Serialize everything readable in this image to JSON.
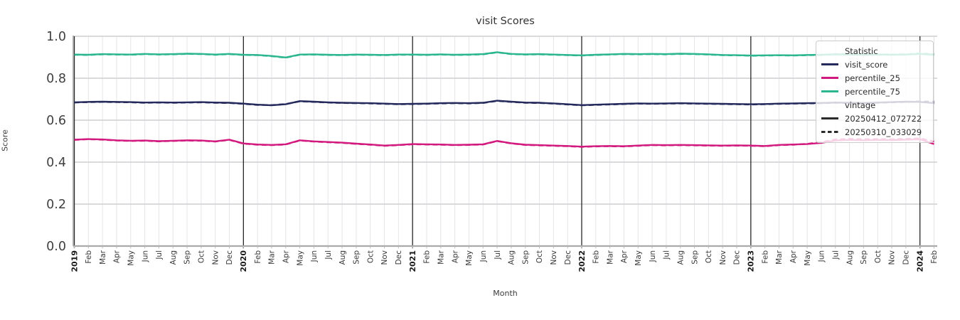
{
  "title": "visit Scores",
  "axes": {
    "xlabel": "Month",
    "ylabel": "Score",
    "yticks": [
      "0.0",
      "0.2",
      "0.4",
      "0.6",
      "0.8",
      "1.0"
    ],
    "ylim": [
      0.0,
      1.0
    ]
  },
  "legend": {
    "title": "Statistic",
    "subtitle": "vintage",
    "statistics": [
      {
        "label": "visit_score",
        "color": "#242a5c"
      },
      {
        "label": "percentile_25",
        "color": "#d2197e"
      },
      {
        "label": "percentile_75",
        "color": "#2bb68f"
      }
    ],
    "vintages": [
      {
        "label": "20250412_072722",
        "dash": "solid",
        "color": "#2b2b2b"
      },
      {
        "label": "20250310_033029",
        "dash": "dashed",
        "color": "#2b2b2b"
      }
    ]
  },
  "colors": {
    "visit_score": "#242a5c",
    "percentile_25": "#d2197e",
    "percentile_75": "#2bb68f",
    "year_gridline": "#262626",
    "month_gridline": "#e5e5e8",
    "major_gridline": "#d4d4d8",
    "spine": "#aaaaaa",
    "tick_text": "#3a3a3a",
    "ytick_text": "#404040"
  },
  "chart_data": {
    "type": "line",
    "title": "visit Scores",
    "xlabel": "Month",
    "ylabel": "Score",
    "ylim": [
      0.0,
      1.0
    ],
    "grid": true,
    "legend_position": "upper right",
    "x": [
      "2019",
      "Feb",
      "Mar",
      "Apr",
      "May",
      "Jun",
      "Jul",
      "Aug",
      "Sep",
      "Oct",
      "Nov",
      "Dec",
      "2020",
      "Feb",
      "Mar",
      "Apr",
      "May",
      "Jun",
      "Jul",
      "Aug",
      "Sep",
      "Oct",
      "Nov",
      "Dec",
      "2021",
      "Feb",
      "Mar",
      "Apr",
      "May",
      "Jun",
      "Jul",
      "Aug",
      "Sep",
      "Oct",
      "Nov",
      "Dec",
      "2022",
      "Feb",
      "Mar",
      "Apr",
      "May",
      "Jun",
      "Jul",
      "Aug",
      "Sep",
      "Oct",
      "Nov",
      "Dec",
      "2023",
      "Feb",
      "Mar",
      "Apr",
      "May",
      "Jun",
      "Jul",
      "Aug",
      "Sep",
      "Oct",
      "Nov",
      "Dec",
      "2024",
      "Feb"
    ],
    "year_indices": [
      0,
      12,
      24,
      36,
      48,
      60
    ],
    "series": [
      {
        "name": "visit_score",
        "vintage": "20250412_072722",
        "color": "#242a5c",
        "dash": "solid",
        "values": [
          0.685,
          0.687,
          0.688,
          0.687,
          0.686,
          0.684,
          0.685,
          0.684,
          0.685,
          0.686,
          0.684,
          0.683,
          0.679,
          0.674,
          0.671,
          0.676,
          0.691,
          0.688,
          0.685,
          0.683,
          0.682,
          0.681,
          0.679,
          0.677,
          0.678,
          0.679,
          0.681,
          0.682,
          0.681,
          0.683,
          0.693,
          0.688,
          0.684,
          0.683,
          0.68,
          0.676,
          0.672,
          0.674,
          0.676,
          0.678,
          0.68,
          0.679,
          0.68,
          0.681,
          0.68,
          0.679,
          0.678,
          0.677,
          0.676,
          0.677,
          0.679,
          0.68,
          0.681,
          0.682,
          0.684,
          0.683,
          0.682,
          0.684,
          0.686,
          0.688,
          0.687,
          0.681
        ]
      },
      {
        "name": "visit_score",
        "vintage": "20250310_033029",
        "color": "#242a5c",
        "dash": "dashed",
        "values": [
          0.684,
          0.686,
          0.687,
          0.686,
          0.685,
          0.683,
          0.684,
          0.683,
          0.684,
          0.685,
          0.683,
          0.682,
          0.678,
          0.673,
          0.672,
          0.677,
          0.69,
          0.687,
          0.684,
          0.682,
          0.681,
          0.68,
          0.678,
          0.676,
          0.677,
          0.678,
          0.68,
          0.681,
          0.68,
          0.682,
          0.692,
          0.687,
          0.683,
          0.682,
          0.679,
          0.675,
          0.671,
          0.673,
          0.675,
          0.677,
          0.679,
          0.678,
          0.679,
          0.68,
          0.679,
          0.678,
          0.677,
          0.676,
          0.675,
          0.676,
          0.678,
          0.679,
          0.68,
          0.681,
          0.683,
          0.682,
          0.681,
          0.683,
          0.685,
          0.687,
          0.689,
          0.688
        ]
      },
      {
        "name": "percentile_25",
        "vintage": "20250412_072722",
        "color": "#d2197e",
        "dash": "solid",
        "values": [
          0.507,
          0.51,
          0.508,
          0.504,
          0.502,
          0.503,
          0.5,
          0.502,
          0.504,
          0.503,
          0.499,
          0.507,
          0.489,
          0.484,
          0.482,
          0.485,
          0.504,
          0.499,
          0.496,
          0.493,
          0.488,
          0.484,
          0.479,
          0.482,
          0.486,
          0.485,
          0.484,
          0.482,
          0.483,
          0.485,
          0.501,
          0.49,
          0.483,
          0.481,
          0.479,
          0.477,
          0.474,
          0.476,
          0.477,
          0.476,
          0.479,
          0.482,
          0.481,
          0.482,
          0.481,
          0.48,
          0.479,
          0.48,
          0.479,
          0.477,
          0.482,
          0.484,
          0.486,
          0.492,
          0.503,
          0.506,
          0.504,
          0.506,
          0.505,
          0.507,
          0.509,
          0.486
        ]
      },
      {
        "name": "percentile_25",
        "vintage": "20250310_033029",
        "color": "#d2197e",
        "dash": "dashed",
        "values": [
          0.506,
          0.509,
          0.507,
          0.503,
          0.501,
          0.502,
          0.499,
          0.501,
          0.503,
          0.502,
          0.498,
          0.506,
          0.488,
          0.483,
          0.481,
          0.484,
          0.503,
          0.498,
          0.495,
          0.492,
          0.487,
          0.483,
          0.478,
          0.481,
          0.485,
          0.484,
          0.483,
          0.481,
          0.482,
          0.484,
          0.5,
          0.489,
          0.482,
          0.48,
          0.478,
          0.476,
          0.473,
          0.475,
          0.476,
          0.475,
          0.478,
          0.481,
          0.48,
          0.481,
          0.48,
          0.479,
          0.478,
          0.479,
          0.478,
          0.476,
          0.481,
          0.483,
          0.487,
          0.495,
          0.508,
          0.511,
          0.509,
          0.51,
          0.509,
          0.511,
          0.513,
          0.498
        ]
      },
      {
        "name": "percentile_75",
        "vintage": "20250412_072722",
        "color": "#2bb68f",
        "dash": "solid",
        "values": [
          0.913,
          0.912,
          0.915,
          0.914,
          0.913,
          0.916,
          0.914,
          0.915,
          0.917,
          0.916,
          0.913,
          0.916,
          0.912,
          0.911,
          0.906,
          0.899,
          0.913,
          0.914,
          0.912,
          0.911,
          0.913,
          0.912,
          0.911,
          0.913,
          0.913,
          0.912,
          0.914,
          0.912,
          0.913,
          0.915,
          0.924,
          0.916,
          0.914,
          0.915,
          0.913,
          0.911,
          0.909,
          0.912,
          0.914,
          0.916,
          0.915,
          0.916,
          0.915,
          0.917,
          0.916,
          0.914,
          0.911,
          0.91,
          0.908,
          0.909,
          0.91,
          0.909,
          0.911,
          0.912,
          0.914,
          0.913,
          0.912,
          0.913,
          0.912,
          0.913,
          0.916,
          0.912
        ]
      },
      {
        "name": "percentile_75",
        "vintage": "20250310_033029",
        "color": "#2bb68f",
        "dash": "dashed",
        "values": [
          0.912,
          0.911,
          0.914,
          0.913,
          0.912,
          0.915,
          0.913,
          0.914,
          0.916,
          0.915,
          0.912,
          0.915,
          0.911,
          0.91,
          0.905,
          0.898,
          0.912,
          0.913,
          0.911,
          0.91,
          0.912,
          0.911,
          0.91,
          0.912,
          0.912,
          0.911,
          0.913,
          0.911,
          0.912,
          0.914,
          0.923,
          0.915,
          0.913,
          0.914,
          0.912,
          0.91,
          0.908,
          0.911,
          0.913,
          0.915,
          0.914,
          0.915,
          0.914,
          0.916,
          0.915,
          0.913,
          0.91,
          0.909,
          0.907,
          0.908,
          0.909,
          0.908,
          0.91,
          0.911,
          0.915,
          0.914,
          0.913,
          0.914,
          0.913,
          0.914,
          0.918,
          0.914
        ]
      }
    ]
  }
}
